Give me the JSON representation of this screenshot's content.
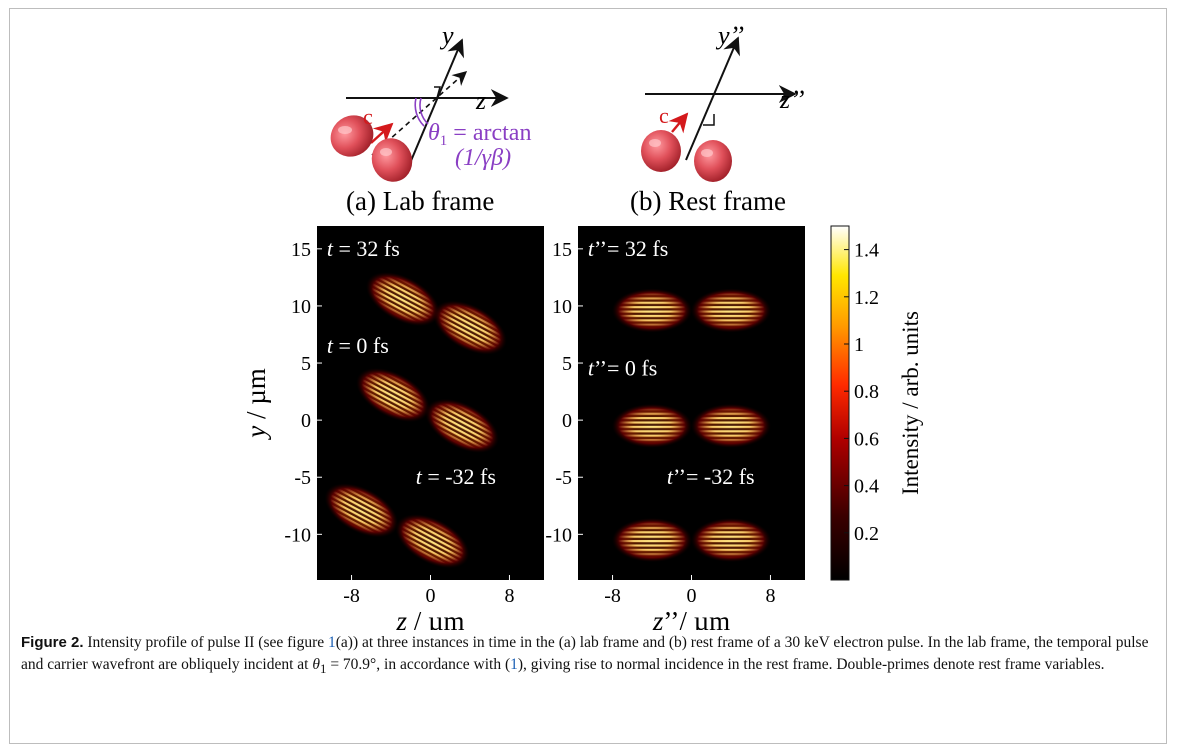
{
  "schematic_a": {
    "axis_y": "y",
    "axis_z": "z",
    "c_label": "c",
    "theta_line1": "θ",
    "theta_sub": "1",
    "theta_eq": " = arctan",
    "theta_line2": "(1/γβ)",
    "frame_label": "(a) Lab frame"
  },
  "schematic_b": {
    "axis_y": "y’’",
    "axis_z": "z’’",
    "c_label": "c",
    "frame_label": "(b) Rest frame"
  },
  "colors": {
    "pulse_red": "#e0505a",
    "theta_purple": "#8a3fc4",
    "arrow_red": "#d4191c"
  },
  "chart_data": [
    {
      "type": "heatmap",
      "panel": "(a) Lab frame",
      "xlabel_var": "z",
      "xlabel_unit": " / µm",
      "ylabel_var": "y",
      "ylabel_unit": " / µm",
      "xlim": [
        -11.5,
        11.5
      ],
      "ylim": [
        -14,
        17
      ],
      "xticks": [
        -8,
        0,
        8
      ],
      "yticks": [
        15,
        10,
        5,
        0,
        -5,
        -10
      ],
      "time_labels": [
        {
          "var": "t",
          "text": " = 32 fs",
          "z": -10.5,
          "y": 15
        },
        {
          "var": "t",
          "text": " = 0 fs",
          "z": -10.5,
          "y": 6.5
        },
        {
          "var": "t",
          "text": " = -32 fs",
          "z": -1.5,
          "y": -5
        }
      ],
      "pulses": [
        {
          "z": -2.8,
          "y": 10.6,
          "tilted": true
        },
        {
          "z": 4.0,
          "y": 8.1,
          "tilted": true
        },
        {
          "z": -3.8,
          "y": 2.2,
          "tilted": true
        },
        {
          "z": 3.2,
          "y": -0.5,
          "tilted": true
        },
        {
          "z": -7.0,
          "y": -7.9,
          "tilted": true
        },
        {
          "z": 0.2,
          "y": -10.6,
          "tilted": true
        }
      ]
    },
    {
      "type": "heatmap",
      "panel": "(b) Rest frame",
      "xlabel_var": "z",
      "xlabel_unit": "’’/ µm",
      "ylabel_var": "y",
      "ylabel_unit": "’ / µm",
      "xlim": [
        -11.5,
        11.5
      ],
      "ylim": [
        -14,
        17
      ],
      "xticks": [
        -8,
        0,
        8
      ],
      "yticks": [
        15,
        10,
        5,
        0,
        -5,
        -10
      ],
      "time_labels": [
        {
          "var": "t",
          "text": "’’= 32 fs",
          "z": -10.5,
          "y": 15
        },
        {
          "var": "t",
          "text": "’’= 0 fs",
          "z": -10.5,
          "y": 4.5
        },
        {
          "var": "t",
          "text": "’’= -32 fs",
          "z": -2.5,
          "y": -5
        }
      ],
      "pulses": [
        {
          "z": -4.0,
          "y": 9.6,
          "tilted": false
        },
        {
          "z": 4.0,
          "y": 9.6,
          "tilted": false
        },
        {
          "z": -4.0,
          "y": -0.5,
          "tilted": false
        },
        {
          "z": 4.0,
          "y": -0.5,
          "tilted": false
        },
        {
          "z": -4.0,
          "y": -10.5,
          "tilted": false
        },
        {
          "z": 4.0,
          "y": -10.5,
          "tilted": false
        }
      ]
    }
  ],
  "colorbar": {
    "label": "Intensity / arb. units",
    "ticks": [
      "1.4",
      "1.2",
      "1",
      "0.8",
      "0.6",
      "0.4",
      "0.2"
    ],
    "tick_values": [
      1.4,
      1.2,
      1.0,
      0.8,
      0.6,
      0.4,
      0.2
    ],
    "range": [
      0,
      1.5
    ]
  },
  "caption": {
    "label": "Figure 2.",
    "t1": " Intensity profile of pulse II (see figure ",
    "ref1": "1",
    "t2": "(a)) at three instances in time in the (a) lab frame and (b) rest frame of a 30 keV electron pulse. In the lab frame, the temporal pulse and carrier wavefront are obliquely incident at ",
    "theta": "θ",
    "theta_sub": "1",
    "eq": " = 70.9°",
    "t3": ", in accordance with (",
    "ref2": "1",
    "t4": "), giving rise to normal incidence in the rest frame. Double-primes denote rest frame variables."
  }
}
